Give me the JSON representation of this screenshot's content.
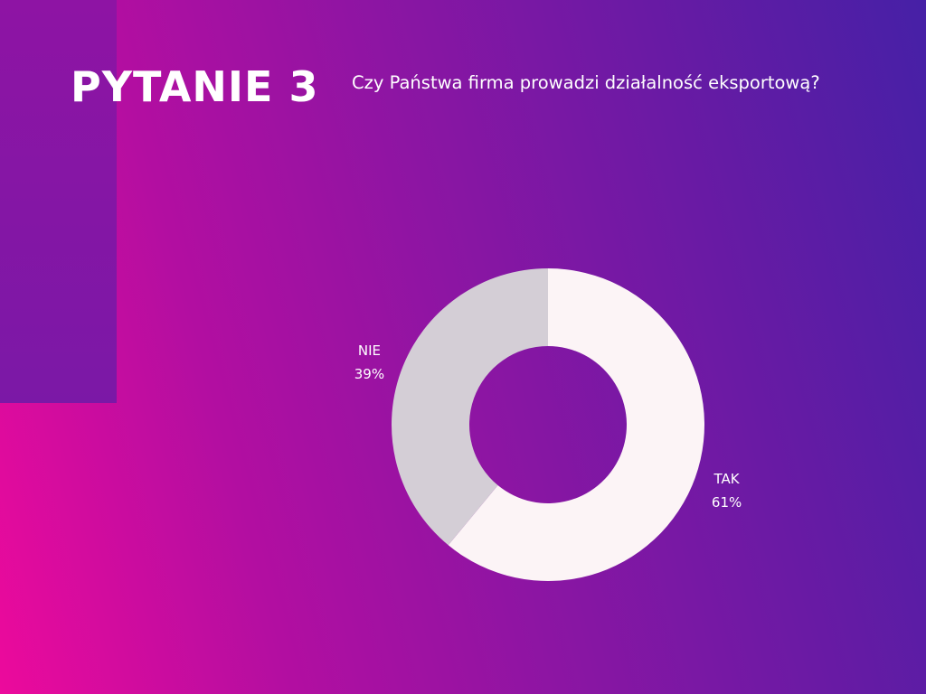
{
  "slide": {
    "heading": "PYTANIE 3",
    "question": "Czy Państwa firma prowadzi działalność eksportową?"
  },
  "chart_data": {
    "type": "pie",
    "variant": "donut",
    "title": "",
    "categories": [
      "TAK",
      "NIE"
    ],
    "values": [
      61,
      39
    ],
    "unit": "%",
    "colors": [
      "#fcf4f6",
      "#d4ced6"
    ],
    "labels": [
      {
        "category": "TAK",
        "value_text": "61%"
      },
      {
        "category": "NIE",
        "value_text": "39%"
      }
    ],
    "legend": "none",
    "start_angle": "12 o'clock",
    "direction": "clockwise"
  }
}
